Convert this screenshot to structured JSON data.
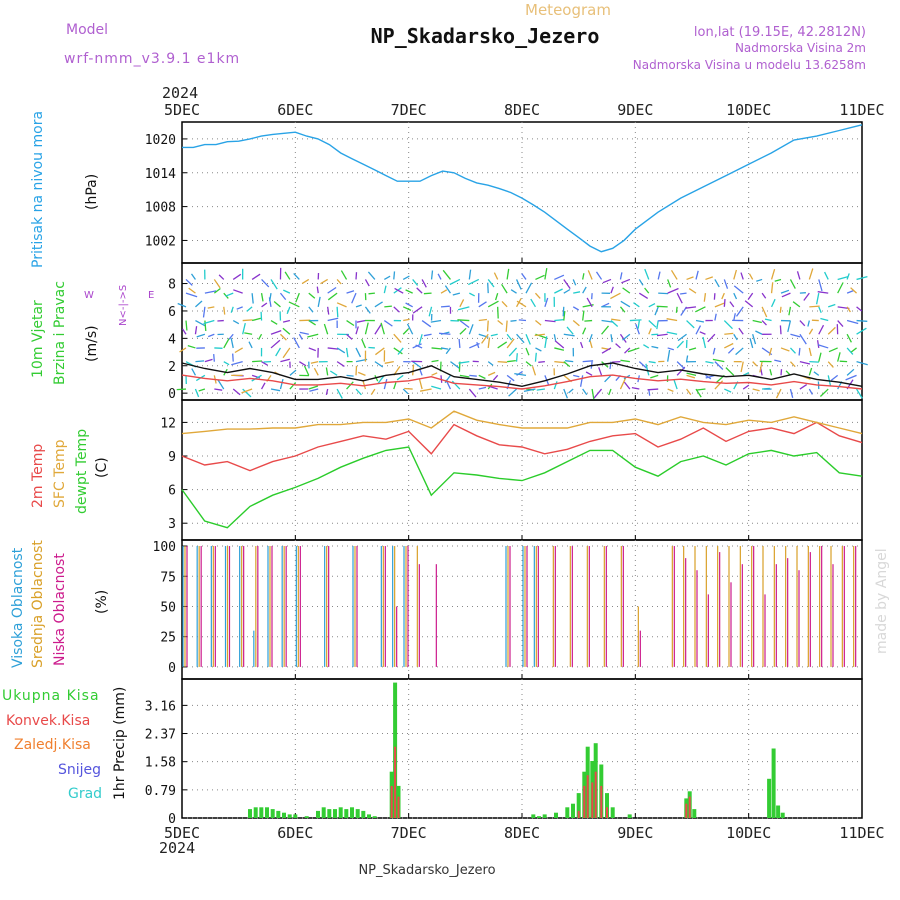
{
  "header": {
    "top_label": "Meteogram",
    "title": "NP_Skadarsko_Jezero",
    "model_label": "Model",
    "model_name": "wrf-nmm_v3.9.1 e1km",
    "lonlat": "lon,lat (19.15E, 42.2812N)",
    "height_line": "Nadmorska Visina 2m",
    "model_height_line": "Nadmorska Visina u modelu 13.6258m",
    "year_top": "2024",
    "year_bottom": "2024",
    "footer": "NP_Skadarsko_Jezero",
    "watermark": "made by Angel"
  },
  "colors": {
    "pressure": "#29a3e6",
    "temp2m": "#e84a4a",
    "sfc": "#e0a83a",
    "dewpt": "#2bcc2b",
    "high_cloud": "#2ea0d8",
    "mid_cloud": "#d9a028",
    "low_cloud": "#cc1a8c",
    "total_precip": "#33cc33",
    "conv_precip": "#e84a4a",
    "frz_precip": "#f08030",
    "snow": "#5555dd",
    "hail": "#33cccc",
    "wind_label": "#33cc33",
    "compass": "#aa44cc"
  },
  "dates": [
    "5DEC",
    "6DEC",
    "7DEC",
    "8DEC",
    "9DEC",
    "10DEC",
    "11DEC"
  ],
  "panels": {
    "pressure": {
      "label": "Pritisak na nivou mora",
      "unit": "(hPa)"
    },
    "wind": {
      "label1": "10m Vjetar",
      "label2": "Brzina i Pravac",
      "unit": "(m/s)",
      "compass_ns": "S<-|->N",
      "compass_w": "W",
      "compass_e": "E",
      "compass_ns_v": "N<-|->S"
    },
    "temp": {
      "label_2m": "2m Temp",
      "label_sfc": "SFC Temp",
      "label_dew": "dewpt Temp",
      "unit": "(C)"
    },
    "cloud": {
      "label_high": "Visoka Oblacnost",
      "label_mid": "Srednja Oblacnost",
      "label_low": "Niska Oblacnost",
      "unit": "(%)"
    },
    "precip": {
      "unit": "1hr Precip (mm)"
    }
  },
  "legend_precip": [
    "Ukupna Kisa",
    "Konvek.Kisa",
    "Zaledj.Kisa",
    "Snijeg",
    "Grad"
  ],
  "chart_data": [
    {
      "type": "line",
      "name": "pressure",
      "x_days": [
        0,
        0.1,
        0.2,
        0.3,
        0.4,
        0.5,
        0.6,
        0.7,
        0.8,
        0.9,
        1.0,
        1.1,
        1.2,
        1.3,
        1.4,
        1.5,
        1.6,
        1.7,
        1.8,
        1.9,
        2.0,
        2.1,
        2.2,
        2.3,
        2.4,
        2.5,
        2.6,
        2.7,
        2.8,
        2.9,
        3.0,
        3.1,
        3.2,
        3.3,
        3.4,
        3.5,
        3.6,
        3.7,
        3.8,
        3.9,
        4.0,
        4.2,
        4.4,
        4.6,
        4.8,
        5.0,
        5.2,
        5.4,
        5.6,
        5.8,
        6.0
      ],
      "y": [
        1018.5,
        1018.5,
        1019.0,
        1019.0,
        1019.5,
        1019.6,
        1020.0,
        1020.5,
        1020.8,
        1021.0,
        1021.2,
        1020.5,
        1020.0,
        1019.0,
        1017.5,
        1016.5,
        1015.5,
        1014.5,
        1013.5,
        1012.5,
        1012.5,
        1012.5,
        1013.5,
        1014.3,
        1014.0,
        1013.0,
        1012.2,
        1011.8,
        1011.2,
        1010.5,
        1009.5,
        1008.3,
        1007.0,
        1005.5,
        1004.0,
        1002.5,
        1001.0,
        1000.0,
        1000.6,
        1002.0,
        1004.0,
        1007.0,
        1009.5,
        1011.5,
        1013.5,
        1015.5,
        1017.5,
        1019.8,
        1020.5,
        1021.5,
        1022.5
      ],
      "ylim": [
        998,
        1023
      ],
      "yticks": [
        1002,
        1008,
        1014,
        1020
      ]
    },
    {
      "type": "line",
      "name": "wind",
      "x_days": [
        0,
        0.2,
        0.4,
        0.6,
        0.8,
        1.0,
        1.2,
        1.4,
        1.6,
        1.8,
        2.0,
        2.2,
        2.4,
        2.6,
        2.8,
        3.0,
        3.2,
        3.4,
        3.6,
        3.8,
        4.0,
        4.2,
        4.4,
        4.6,
        4.8,
        5.0,
        5.2,
        5.4,
        5.6,
        5.8,
        6.0
      ],
      "y": [
        2.2,
        1.8,
        1.5,
        1.8,
        1.5,
        1.0,
        1.0,
        1.2,
        0.9,
        1.3,
        1.5,
        2.0,
        1.2,
        1.0,
        0.8,
        0.5,
        0.9,
        1.4,
        2.0,
        2.2,
        1.8,
        1.5,
        1.7,
        1.4,
        1.2,
        1.3,
        1.0,
        1.4,
        1.0,
        0.8,
        0.5
      ],
      "ylim": [
        -0.5,
        9.5
      ],
      "yticks": [
        0,
        2,
        4,
        6,
        8
      ]
    },
    {
      "type": "line",
      "name": "temperature",
      "x_days": [
        0,
        0.2,
        0.4,
        0.6,
        0.8,
        1.0,
        1.2,
        1.4,
        1.6,
        1.8,
        2.0,
        2.2,
        2.4,
        2.6,
        2.8,
        3.0,
        3.2,
        3.4,
        3.6,
        3.8,
        4.0,
        4.2,
        4.4,
        4.6,
        4.8,
        5.0,
        5.2,
        5.4,
        5.6,
        5.8,
        6.0
      ],
      "series": [
        {
          "name": "2m Temp",
          "values": [
            9.0,
            8.2,
            8.5,
            7.7,
            8.5,
            9.0,
            9.8,
            10.3,
            10.8,
            10.5,
            11.2,
            9.2,
            11.8,
            10.8,
            10.0,
            9.8,
            9.2,
            9.6,
            10.3,
            10.8,
            11.0,
            9.8,
            10.5,
            11.5,
            10.3,
            11.2,
            11.5,
            11.0,
            12.0,
            10.8,
            10.2
          ]
        },
        {
          "name": "SFC Temp",
          "values": [
            11.0,
            11.2,
            11.4,
            11.4,
            11.5,
            11.5,
            11.8,
            11.8,
            12.0,
            12.0,
            12.3,
            11.5,
            13.0,
            12.2,
            11.8,
            11.5,
            11.5,
            11.5,
            12.0,
            12.0,
            12.3,
            11.8,
            12.5,
            12.0,
            11.8,
            12.2,
            12.0,
            12.5,
            12.0,
            11.5,
            11.0
          ]
        },
        {
          "name": "dewpt Temp",
          "values": [
            6.0,
            3.2,
            2.6,
            4.5,
            5.5,
            6.2,
            7.0,
            8.0,
            8.8,
            9.5,
            9.8,
            5.5,
            7.5,
            7.3,
            7.0,
            6.8,
            7.5,
            8.5,
            9.5,
            9.5,
            8.0,
            7.2,
            8.5,
            9.0,
            8.2,
            9.2,
            9.5,
            9.0,
            9.3,
            7.5,
            7.2
          ]
        }
      ],
      "ylim": [
        1.5,
        14
      ],
      "yticks": [
        3,
        6,
        9,
        12
      ]
    },
    {
      "type": "bar",
      "name": "cloud",
      "ylim": [
        0,
        100
      ],
      "yticks": [
        0,
        25,
        50,
        75,
        100
      ],
      "x_days": [
        0,
        0.125,
        0.25,
        0.375,
        0.5,
        0.625,
        0.75,
        0.875,
        1.0,
        1.25,
        1.5,
        1.75,
        1.85,
        1.95,
        2.05,
        2.2,
        2.85,
        3.0,
        3.1,
        3.25,
        3.4,
        3.55,
        3.7,
        3.85,
        4.0,
        4.3,
        4.4,
        4.5,
        4.6,
        4.7,
        4.8,
        4.9,
        5.0,
        5.1,
        5.2,
        5.3,
        5.4,
        5.5,
        5.6,
        5.7,
        5.8,
        5.9,
        6.0
      ],
      "series": [
        {
          "name": "Visoka Oblacnost",
          "values": [
            100,
            100,
            100,
            100,
            100,
            30,
            100,
            100,
            100,
            100,
            100,
            100,
            100,
            100,
            0,
            0,
            100,
            100,
            100,
            0,
            0,
            0,
            0,
            0,
            0,
            0,
            0,
            0,
            0,
            0,
            0,
            0,
            0,
            0,
            0,
            0,
            0,
            0,
            0,
            0,
            0,
            0,
            0
          ]
        },
        {
          "name": "Srednja Oblacnost",
          "values": [
            100,
            100,
            100,
            100,
            100,
            100,
            100,
            100,
            100,
            100,
            100,
            100,
            100,
            100,
            100,
            0,
            100,
            100,
            100,
            100,
            100,
            100,
            100,
            100,
            50,
            100,
            100,
            100,
            100,
            100,
            100,
            100,
            100,
            100,
            100,
            100,
            100,
            100,
            100,
            100,
            100,
            100,
            100
          ]
        },
        {
          "name": "Niska Oblacnost",
          "values": [
            100,
            100,
            100,
            100,
            100,
            100,
            100,
            100,
            100,
            100,
            100,
            100,
            50,
            100,
            85,
            85,
            100,
            100,
            100,
            100,
            100,
            100,
            100,
            100,
            30,
            100,
            90,
            80,
            60,
            95,
            70,
            85,
            100,
            60,
            85,
            90,
            80,
            95,
            100,
            85,
            100,
            100,
            100
          ]
        }
      ]
    },
    {
      "type": "bar",
      "name": "precipitation",
      "ylim": [
        0,
        3.9
      ],
      "yticks": [
        0,
        0.79,
        1.58,
        2.37,
        3.16
      ],
      "x_days": [
        0.6,
        0.65,
        0.7,
        0.75,
        0.8,
        0.85,
        0.9,
        0.95,
        1.0,
        1.1,
        1.2,
        1.25,
        1.3,
        1.35,
        1.4,
        1.45,
        1.5,
        1.55,
        1.6,
        1.65,
        1.7,
        1.85,
        1.88,
        1.91,
        3.1,
        3.15,
        3.2,
        3.3,
        3.4,
        3.45,
        3.5,
        3.55,
        3.58,
        3.62,
        3.65,
        3.7,
        3.75,
        3.8,
        3.95,
        4.45,
        4.48,
        4.52,
        5.18,
        5.22,
        5.26,
        5.3
      ],
      "series": [
        {
          "name": "Ukupna Kisa",
          "values": [
            0.25,
            0.3,
            0.3,
            0.3,
            0.25,
            0.2,
            0.15,
            0.1,
            0.1,
            0.05,
            0.2,
            0.3,
            0.25,
            0.25,
            0.3,
            0.25,
            0.3,
            0.25,
            0.2,
            0.1,
            0.05,
            1.3,
            3.8,
            0.9,
            0.1,
            0.05,
            0.1,
            0.15,
            0.3,
            0.4,
            0.7,
            1.3,
            2.0,
            1.6,
            2.1,
            1.5,
            0.7,
            0.3,
            0.1,
            0.55,
            0.75,
            0.25,
            1.1,
            1.95,
            0.35,
            0.15
          ]
        },
        {
          "name": "Konvek.Kisa",
          "values": [
            0,
            0,
            0,
            0,
            0,
            0,
            0,
            0,
            0,
            0,
            0,
            0,
            0,
            0,
            0,
            0,
            0,
            0,
            0,
            0,
            0,
            0.9,
            2.0,
            0.6,
            0,
            0,
            0,
            0,
            0,
            0,
            0.2,
            0.9,
            1.2,
            1.0,
            1.3,
            0.9,
            0.3,
            0,
            0,
            0.4,
            0.6,
            0,
            0,
            0,
            0,
            0
          ]
        }
      ]
    }
  ]
}
